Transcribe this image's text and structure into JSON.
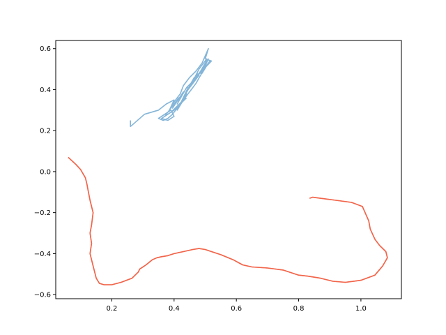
{
  "chart_data": {
    "type": "line",
    "title": "",
    "xlabel": "",
    "ylabel": "",
    "xlim": [
      0.02,
      1.13
    ],
    "ylim": [
      -0.62,
      0.64
    ],
    "xticks": [
      0.2,
      0.4,
      0.6,
      0.8,
      1.0
    ],
    "xtick_labels": [
      "0.2",
      "0.4",
      "0.6",
      "0.8",
      "1.0"
    ],
    "yticks": [
      -0.6,
      -0.4,
      -0.2,
      0.0,
      0.2,
      0.4,
      0.6
    ],
    "ytick_labels": [
      "−0.6",
      "−0.4",
      "−0.2",
      "0.0",
      "0.2",
      "0.4",
      "0.6"
    ],
    "grid": false,
    "legend": "none",
    "series": [
      {
        "color": "#84b5d8",
        "x": [
          0.26,
          0.26,
          0.305,
          0.35,
          0.375,
          0.4,
          0.385,
          0.415,
          0.395,
          0.43,
          0.41,
          0.44,
          0.46,
          0.43,
          0.445,
          0.48,
          0.455,
          0.49,
          0.47,
          0.5,
          0.485,
          0.51,
          0.495,
          0.52,
          0.5,
          0.51,
          0.49,
          0.47,
          0.45,
          0.43,
          0.42,
          0.4,
          0.39,
          0.37,
          0.39,
          0.41,
          0.43,
          0.41,
          0.44,
          0.42,
          0.445,
          0.43,
          0.46,
          0.44,
          0.465,
          0.45,
          0.475,
          0.46,
          0.48,
          0.49,
          0.505,
          0.49,
          0.51,
          0.515,
          0.5,
          0.485,
          0.47,
          0.455,
          0.44,
          0.425,
          0.41,
          0.395,
          0.38,
          0.365,
          0.35,
          0.37,
          0.39,
          0.4,
          0.38,
          0.36,
          0.38,
          0.4,
          0.42,
          0.44
        ],
        "y": [
          0.25,
          0.22,
          0.28,
          0.3,
          0.33,
          0.35,
          0.3,
          0.36,
          0.31,
          0.39,
          0.33,
          0.41,
          0.44,
          0.36,
          0.4,
          0.47,
          0.43,
          0.5,
          0.45,
          0.53,
          0.48,
          0.55,
          0.5,
          0.54,
          0.55,
          0.6,
          0.53,
          0.49,
          0.46,
          0.42,
          0.38,
          0.34,
          0.31,
          0.27,
          0.29,
          0.32,
          0.35,
          0.3,
          0.38,
          0.33,
          0.41,
          0.36,
          0.44,
          0.39,
          0.46,
          0.42,
          0.48,
          0.44,
          0.5,
          0.52,
          0.55,
          0.48,
          0.53,
          0.54,
          0.51,
          0.47,
          0.43,
          0.4,
          0.37,
          0.34,
          0.31,
          0.28,
          0.26,
          0.25,
          0.26,
          0.28,
          0.3,
          0.27,
          0.25,
          0.26,
          0.28,
          0.3,
          0.33,
          0.36
        ]
      },
      {
        "color": "#f7a59a",
        "x": [
          0.06,
          0.085,
          0.1,
          0.115,
          0.12,
          0.125,
          0.13,
          0.14,
          0.135,
          0.13,
          0.135,
          0.13,
          0.14,
          0.15,
          0.16,
          0.175,
          0.2,
          0.23,
          0.265,
          0.285,
          0.29,
          0.31,
          0.33,
          0.345,
          0.36,
          0.38,
          0.4,
          0.43,
          0.46,
          0.48,
          0.5,
          0.52,
          0.55,
          0.59,
          0.62,
          0.65,
          0.7,
          0.75,
          0.8,
          0.83,
          0.87,
          0.91,
          0.95,
          1.0,
          1.045,
          1.07,
          1.085,
          1.08,
          1.06,
          1.045,
          1.03,
          1.025,
          1.005,
          0.97,
          0.92,
          0.87,
          0.845,
          0.835
        ],
        "y": [
          0.07,
          0.035,
          0.01,
          -0.03,
          -0.06,
          -0.1,
          -0.14,
          -0.2,
          -0.26,
          -0.3,
          -0.35,
          -0.4,
          -0.46,
          -0.52,
          -0.545,
          -0.552,
          -0.552,
          -0.54,
          -0.52,
          -0.49,
          -0.475,
          -0.455,
          -0.43,
          -0.42,
          -0.415,
          -0.41,
          -0.4,
          -0.39,
          -0.38,
          -0.375,
          -0.38,
          -0.39,
          -0.405,
          -0.43,
          -0.455,
          -0.465,
          -0.47,
          -0.48,
          -0.505,
          -0.51,
          -0.52,
          -0.535,
          -0.54,
          -0.53,
          -0.505,
          -0.46,
          -0.42,
          -0.39,
          -0.36,
          -0.33,
          -0.28,
          -0.24,
          -0.17,
          -0.15,
          -0.14,
          -0.13,
          -0.125,
          -0.13
        ]
      },
      {
        "color": "#f26449",
        "x": [
          0.06,
          0.085,
          0.1,
          0.115,
          0.12,
          0.125,
          0.13,
          0.14,
          0.135,
          0.13,
          0.135,
          0.13,
          0.14,
          0.15,
          0.16,
          0.175,
          0.2,
          0.23,
          0.265,
          0.285,
          0.29,
          0.31,
          0.33,
          0.345,
          0.36,
          0.38,
          0.4,
          0.43,
          0.46,
          0.48,
          0.5,
          0.52,
          0.55,
          0.59,
          0.62,
          0.65,
          0.7,
          0.75,
          0.8,
          0.83,
          0.87,
          0.91,
          0.95,
          1.0,
          1.045,
          1.07,
          1.085,
          1.08,
          1.06,
          1.045,
          1.03,
          1.025,
          1.005,
          0.97,
          0.92,
          0.87,
          0.845,
          0.835
        ],
        "y": [
          0.07,
          0.035,
          0.01,
          -0.03,
          -0.06,
          -0.1,
          -0.14,
          -0.2,
          -0.26,
          -0.3,
          -0.35,
          -0.4,
          -0.46,
          -0.52,
          -0.545,
          -0.552,
          -0.552,
          -0.54,
          -0.52,
          -0.49,
          -0.475,
          -0.455,
          -0.43,
          -0.42,
          -0.415,
          -0.41,
          -0.4,
          -0.39,
          -0.38,
          -0.375,
          -0.38,
          -0.39,
          -0.405,
          -0.43,
          -0.455,
          -0.465,
          -0.47,
          -0.48,
          -0.505,
          -0.51,
          -0.52,
          -0.535,
          -0.54,
          -0.53,
          -0.505,
          -0.46,
          -0.42,
          -0.39,
          -0.36,
          -0.33,
          -0.28,
          -0.24,
          -0.17,
          -0.15,
          -0.14,
          -0.13,
          -0.125,
          -0.13
        ]
      }
    ]
  }
}
